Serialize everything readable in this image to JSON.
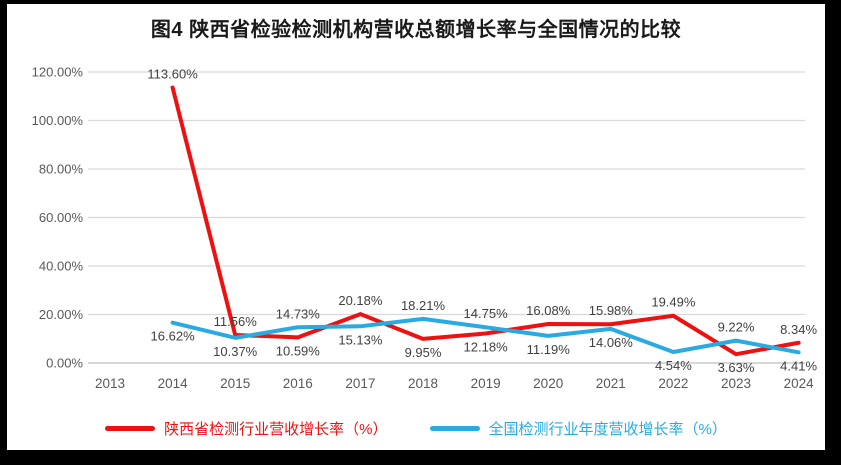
{
  "chart_data": {
    "type": "line",
    "title": "图4 陕西省检验检测机构营收总额增长率与全国情况的比较",
    "categories": [
      "2013",
      "2014",
      "2015",
      "2016",
      "2017",
      "2018",
      "2019",
      "2020",
      "2021",
      "2022",
      "2023",
      "2024"
    ],
    "series": [
      {
        "name": "陕西省检测行业营收增长率（%）",
        "color": "#ee1111",
        "values": [
          null,
          113.6,
          11.56,
          10.59,
          20.18,
          9.95,
          12.18,
          16.08,
          15.98,
          19.49,
          3.63,
          8.34
        ]
      },
      {
        "name": "全国检测行业年度营收增长率（%）",
        "color": "#29abe2",
        "values": [
          null,
          16.62,
          10.37,
          14.73,
          15.13,
          18.21,
          14.75,
          11.19,
          14.06,
          4.54,
          9.22,
          4.41
        ]
      }
    ],
    "xlabel": "",
    "ylabel": "",
    "ylim": [
      0,
      120
    ],
    "y_ticks": [
      "0.00%",
      "20.00%",
      "40.00%",
      "60.00%",
      "80.00%",
      "100.00%",
      "120.00%"
    ],
    "grid": true,
    "data_labels": true,
    "legend_position": "bottom",
    "colors": {
      "grid": "#d9d9d9",
      "axis": "#bfbfbf",
      "tick_text": "#595959",
      "label_text": "#404040",
      "title_text": "#1a1a1a",
      "panel_bg": "#ffffff",
      "frame_bg": "#000000"
    }
  }
}
